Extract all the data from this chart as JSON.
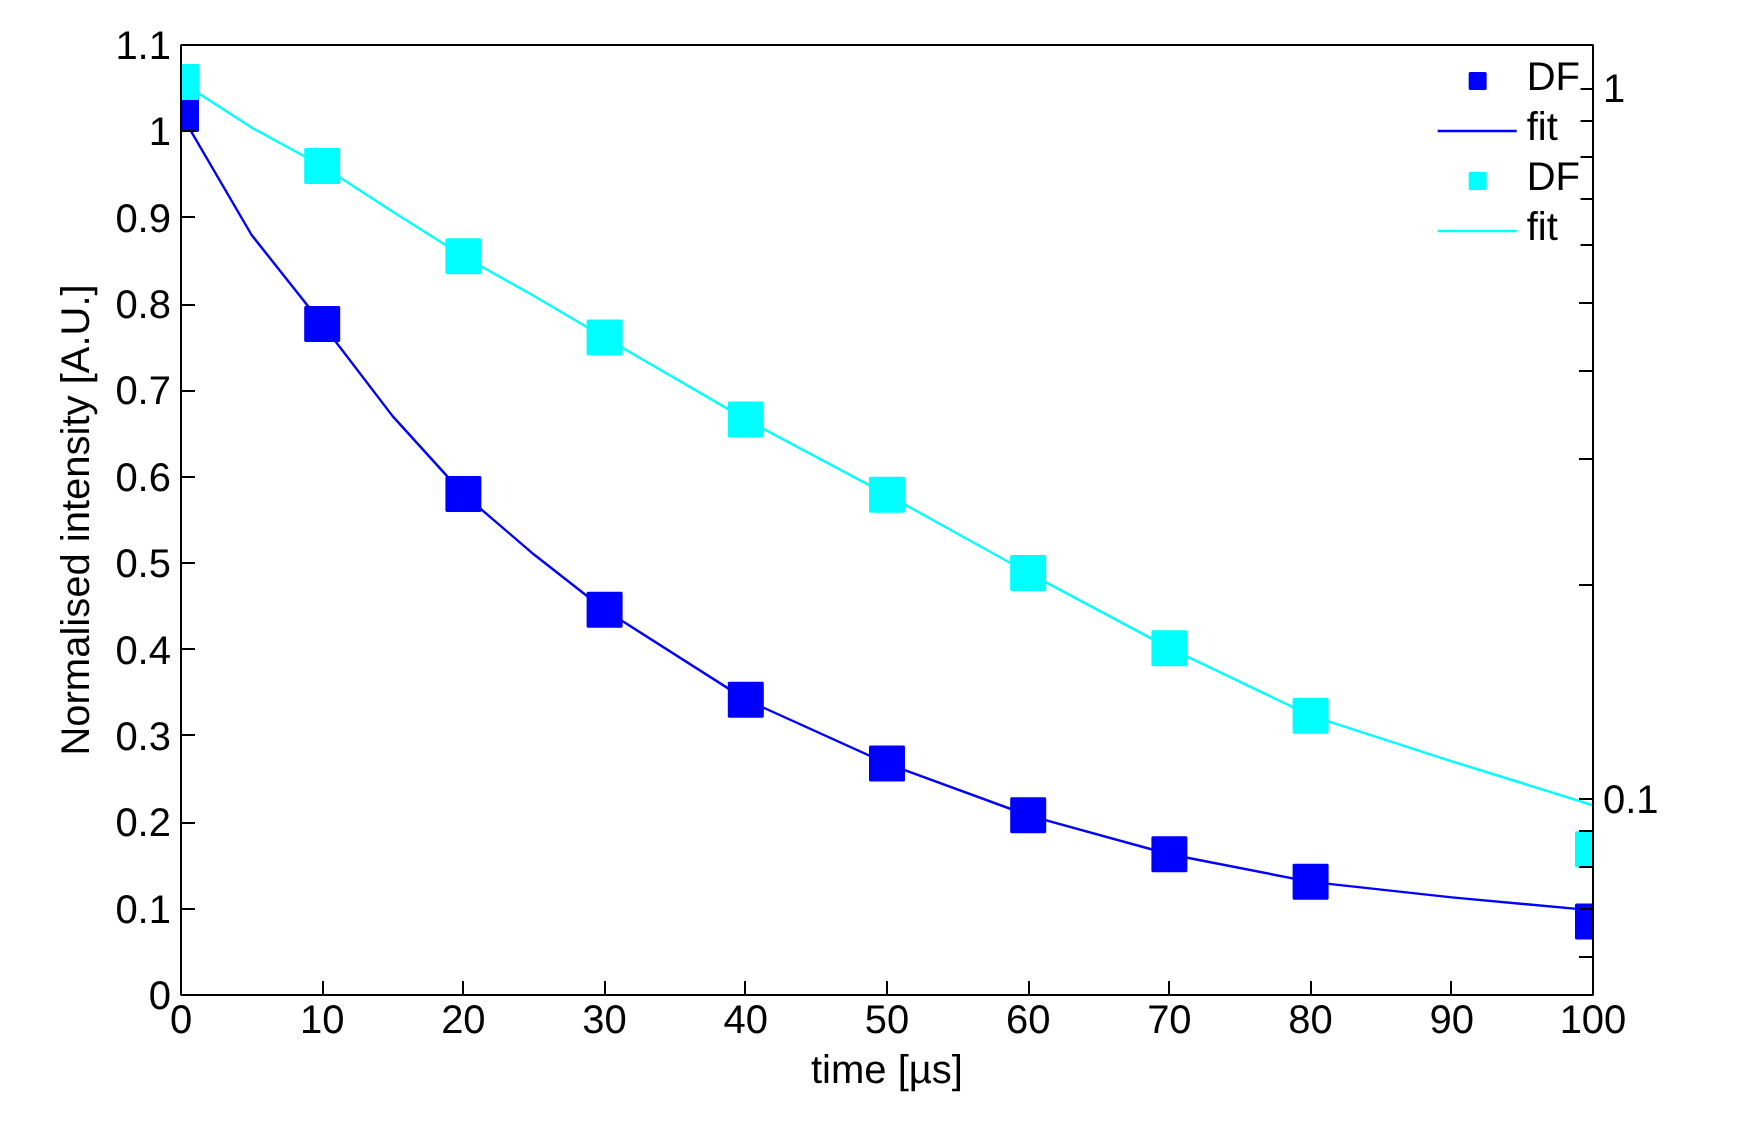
{
  "chart_data": {
    "type": "line",
    "xlabel": "time [µs]",
    "ylabel": "Normalised intensity [A.U.]",
    "xlim": [
      0,
      100
    ],
    "xticks": [
      0,
      10,
      20,
      30,
      40,
      50,
      60,
      70,
      80,
      90,
      100
    ],
    "ylim": [
      0,
      1.1
    ],
    "yticks": [
      0,
      0.1,
      0.2,
      0.3,
      0.4,
      0.5,
      0.6,
      0.7,
      0.8,
      0.9,
      1,
      1.1
    ],
    "y2lim": [
      0.053,
      1.15
    ],
    "y2ticks": [
      {
        "value": 0.06,
        "label": null
      },
      {
        "value": 0.07,
        "label": null
      },
      {
        "value": 0.08,
        "label": null
      },
      {
        "value": 0.09,
        "label": null
      },
      {
        "value": 0.1,
        "label": "0.1"
      },
      {
        "value": 0.2,
        "label": null
      },
      {
        "value": 0.3,
        "label": null
      },
      {
        "value": 0.4,
        "label": null
      },
      {
        "value": 0.5,
        "label": null
      },
      {
        "value": 0.6,
        "label": null
      },
      {
        "value": 0.7,
        "label": null
      },
      {
        "value": 0.8,
        "label": null
      },
      {
        "value": 0.9,
        "label": null
      },
      {
        "value": 1,
        "label": "1"
      }
    ],
    "log": "y2",
    "grid": false,
    "legend": "top right",
    "line_style": "solid",
    "series": [
      {
        "name": "DF",
        "type": "scatter",
        "marker": "square",
        "color": "#0000ff",
        "x": [
          0,
          10,
          20,
          30,
          40,
          50,
          60,
          70,
          80,
          100
        ],
        "values": [
          1.02,
          0.777,
          0.58,
          0.446,
          0.342,
          0.268,
          0.208,
          0.163,
          0.131,
          0.085
        ]
      },
      {
        "name": "fit",
        "marker": "none",
        "color": "#0000ff",
        "x": [
          0,
          5,
          10,
          15,
          20,
          25,
          30,
          40,
          50,
          60,
          70,
          80,
          90,
          100
        ],
        "values": [
          1.02,
          0.88,
          0.777,
          0.67,
          0.58,
          0.51,
          0.446,
          0.342,
          0.268,
          0.208,
          0.163,
          0.131,
          0.113,
          0.098
        ]
      },
      {
        "name": "DF",
        "type": "scatter",
        "marker": "square",
        "color": "#00ffff",
        "axis": "y2",
        "x": [
          0,
          10,
          20,
          30,
          40,
          50,
          60,
          70,
          80,
          100
        ],
        "values": [
          1.02,
          0.777,
          0.58,
          0.446,
          0.342,
          0.268,
          0.208,
          0.163,
          0.131,
          0.085
        ]
      },
      {
        "name": "fit",
        "marker": "none",
        "color": "#00ffff",
        "axis": "y2",
        "x": [
          0,
          5,
          10,
          15,
          20,
          25,
          30,
          40,
          50,
          60,
          70,
          80,
          90,
          100
        ],
        "values": [
          1.02,
          0.88,
          0.777,
          0.67,
          0.58,
          0.51,
          0.446,
          0.342,
          0.268,
          0.208,
          0.163,
          0.131,
          0.113,
          0.098
        ]
      }
    ]
  }
}
